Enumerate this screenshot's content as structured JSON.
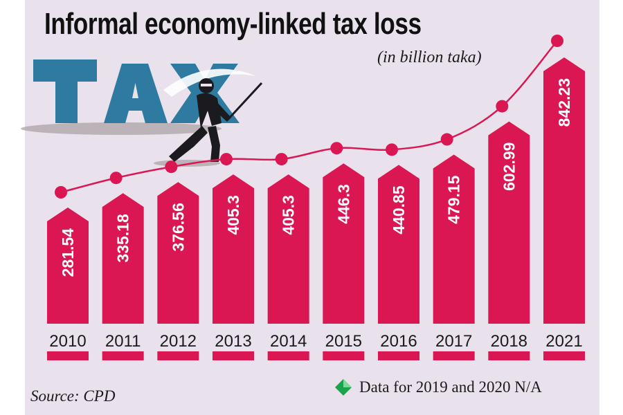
{
  "title": "Informal economy-linked tax loss",
  "unit_note": "(in billion taka)",
  "source": "Source: CPD",
  "footnote": "Data for 2019 and 2020 N/A",
  "illustration": {
    "icon": "tax-thief-illustration",
    "letters": "TAX"
  },
  "colors": {
    "bar": "#db1753",
    "line": "#db1753",
    "background": "#e9e2ec",
    "letters": "#2f7aa1",
    "figure": "#1b1b1f",
    "footnote_icon": "#19a34a"
  },
  "chart_data": {
    "type": "bar",
    "title": "Informal economy-linked tax loss",
    "unit": "(in billion taka)",
    "categories": [
      "2010",
      "2011",
      "2012",
      "2013",
      "2014",
      "2015",
      "2016",
      "2017",
      "2018",
      "2021"
    ],
    "values": [
      281.54,
      335.18,
      376.56,
      405.3,
      405.3,
      446.3,
      440.85,
      479.15,
      602.99,
      842.23
    ],
    "value_labels": [
      "281.54",
      "335.18",
      "376.56",
      "405.3",
      "405.3",
      "446.3",
      "440.85",
      "479.15",
      "602.99",
      "842.23"
    ],
    "overlay": "line with markers following bar tops",
    "xlabel": "",
    "ylabel": "",
    "grid": false,
    "legend": "none"
  }
}
